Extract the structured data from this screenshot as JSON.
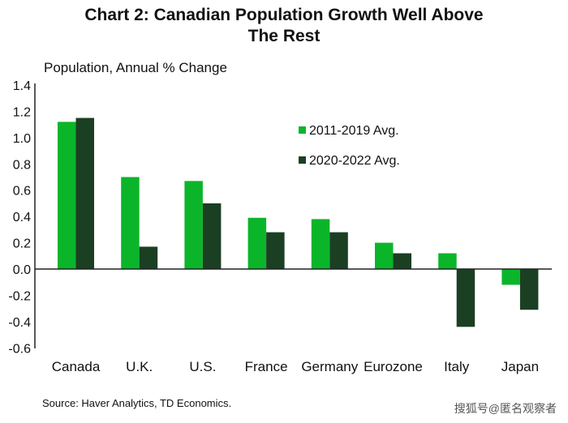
{
  "chart_data": {
    "type": "bar",
    "title": "Chart 2: Canadian Population Growth Well Above The Rest",
    "title_lines": [
      "Chart 2: Canadian Population Growth Well Above",
      "The Rest"
    ],
    "ylabel": "Population, Annual % Change",
    "xlabel": "",
    "ylim": [
      -0.6,
      1.4
    ],
    "yticks": [
      "1.4",
      "1.2",
      "1.0",
      "0.8",
      "0.6",
      "0.4",
      "0.2",
      "0.0",
      "-0.2",
      "-0.4",
      "-0.6"
    ],
    "grid": false,
    "legend_placement": "top-right",
    "categories": [
      "Canada",
      "U.K.",
      "U.S.",
      "France",
      "Germany",
      "Eurozone",
      "Italy",
      "Japan"
    ],
    "series": [
      {
        "name": "2011-2019 Avg.",
        "color": "#0bb52a",
        "values": [
          1.12,
          0.7,
          0.67,
          0.39,
          0.38,
          0.2,
          0.12,
          -0.12
        ]
      },
      {
        "name": "2020-2022 Avg.",
        "color": "#1b3f22",
        "values": [
          1.15,
          0.17,
          0.5,
          0.28,
          0.28,
          0.12,
          -0.44,
          -0.31
        ]
      }
    ]
  },
  "source": "Source: Haver Analytics, TD Economics.",
  "watermark": "搜狐号@匿名观察者"
}
